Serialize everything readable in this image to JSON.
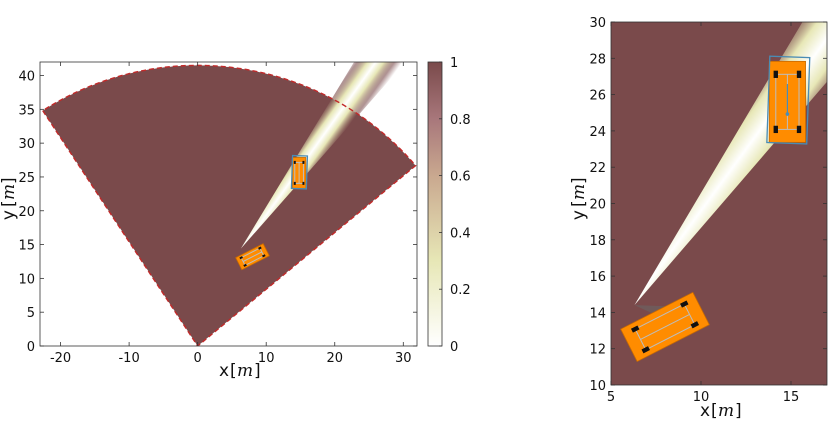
{
  "colors": {
    "occupancy_high": "#7a4a4b",
    "occupancy_low": "#ffffff",
    "mid_yellow": "#e7e7b6",
    "vehicle": "#ff8c00",
    "vehicle_outline": "#c86a00",
    "vehicle_frame": "#bdbdbd",
    "estimate_box": "#4a8cb5",
    "fov_edge": "#c22a2a"
  },
  "chart_data": [
    {
      "type": "heatmap",
      "title": "",
      "xlabel": "x",
      "xunit": "m",
      "ylabel": "y",
      "yunit": "m",
      "xlim": [
        -23,
        32
      ],
      "ylim": [
        0,
        42
      ],
      "xticks": [
        -20,
        -10,
        0,
        10,
        20,
        30
      ],
      "xtick_labels": [
        "-20",
        "-10",
        "0",
        "10",
        "20",
        "30"
      ],
      "yticks": [
        0,
        5,
        10,
        15,
        20,
        25,
        30,
        35,
        40
      ],
      "ytick_labels": [
        "0",
        "5",
        "10",
        "15",
        "20",
        "25",
        "30",
        "35",
        "40"
      ],
      "grid": false,
      "sensor_fov": {
        "origin": [
          0,
          0
        ],
        "range": 41.5,
        "start_angle_deg": 40,
        "end_angle_deg": 123
      },
      "free_beam": {
        "origin": [
          6.3,
          14.4
        ],
        "upper_edge_angle_deg": 59.1,
        "lower_edge_angle_deg": 49.0
      },
      "ego_vehicle": {
        "center": [
          8.0,
          13.2
        ],
        "length": 4.5,
        "width": 2.0,
        "heading_deg": 27
      },
      "target_vehicle": {
        "center": [
          14.8,
          25.6
        ],
        "length": 4.5,
        "width": 2.0,
        "heading_deg": 90
      },
      "target_estimate": {
        "center": [
          14.85,
          25.7
        ],
        "length": 4.8,
        "width": 2.2,
        "heading_deg": 88
      },
      "colorbar": {
        "range": [
          0,
          1
        ],
        "ticks": [
          0,
          0.2,
          0.4,
          0.6,
          0.8,
          1
        ],
        "tick_labels": [
          "0",
          "0.2",
          "0.4",
          "0.6",
          "0.8",
          "1"
        ],
        "placement": "right"
      }
    },
    {
      "type": "heatmap",
      "title": "",
      "xlabel": "x",
      "xunit": "m",
      "ylabel": "y",
      "yunit": "m",
      "xlim": [
        5,
        17
      ],
      "ylim": [
        10,
        30
      ],
      "xticks": [
        5,
        10,
        15
      ],
      "xtick_labels": [
        "5",
        "10",
        "15"
      ],
      "yticks": [
        10,
        12,
        14,
        16,
        18,
        20,
        22,
        24,
        26,
        28,
        30
      ],
      "ytick_labels": [
        "10",
        "12",
        "14",
        "16",
        "18",
        "20",
        "22",
        "24",
        "26",
        "28",
        "30"
      ],
      "grid": false,
      "free_beam": {
        "origin": [
          6.3,
          14.4
        ],
        "upper_edge_angle_deg": 59.1,
        "lower_edge_angle_deg": 49.0
      },
      "shadow_wedge": {
        "polygon": [
          [
            6.3,
            14.4
          ],
          [
            9.3,
            14.3
          ],
          [
            9.6,
            12.9
          ]
        ]
      },
      "ego_vehicle": {
        "center": [
          8.0,
          13.2
        ],
        "length": 4.5,
        "width": 2.0,
        "heading_deg": 27
      },
      "target_vehicle": {
        "center": [
          14.8,
          25.6
        ],
        "length": 4.5,
        "width": 2.0,
        "heading_deg": 90
      },
      "target_estimate": {
        "center": [
          14.85,
          25.7
        ],
        "length": 4.8,
        "width": 2.2,
        "heading_deg": 88
      }
    }
  ]
}
